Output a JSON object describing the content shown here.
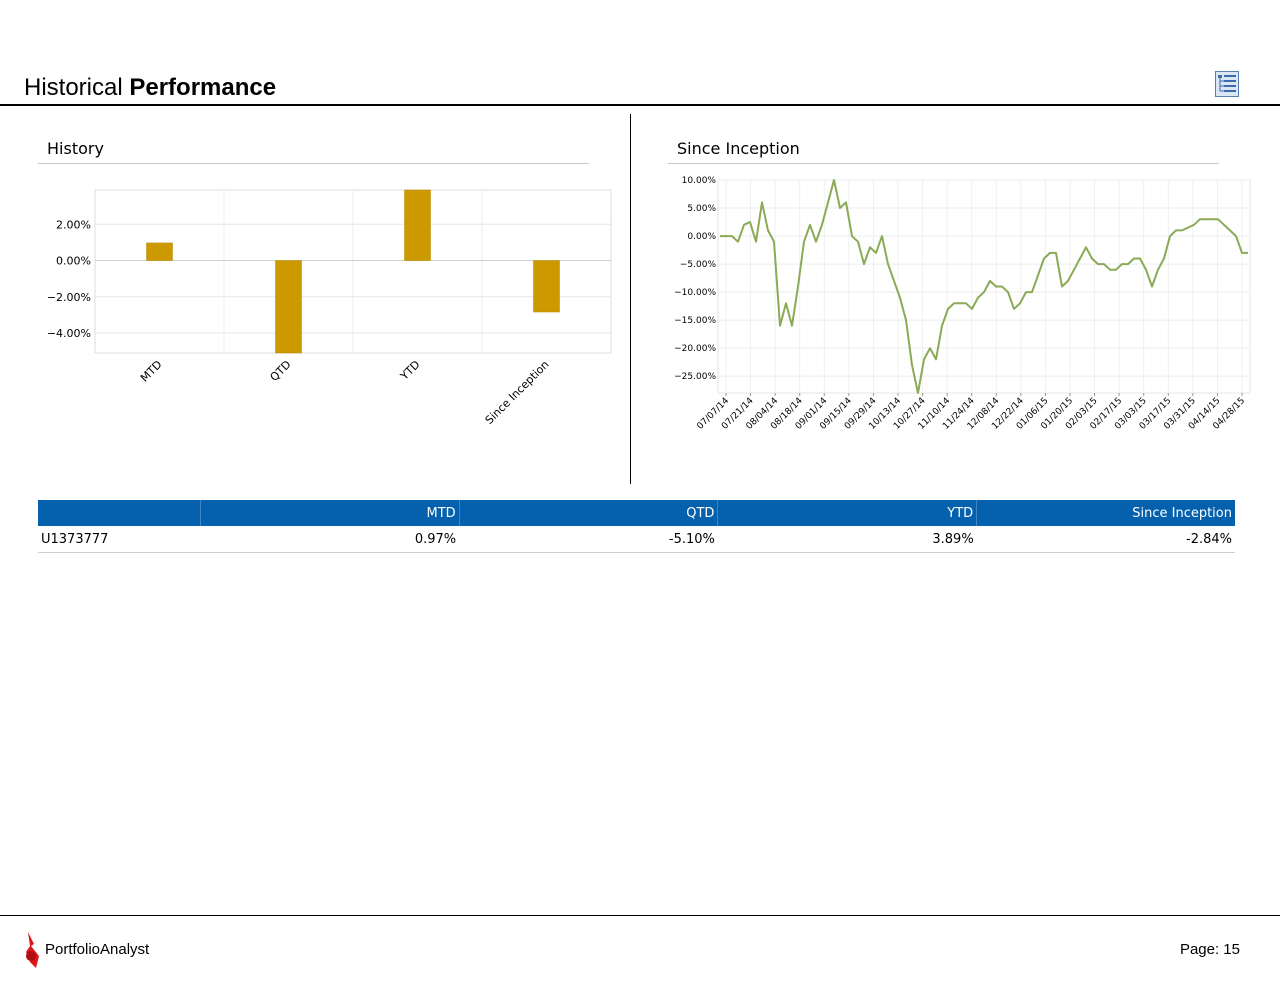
{
  "header": {
    "title_light": "Historical",
    "title_bold": "Performance",
    "report_icon": "report-list-icon"
  },
  "history": {
    "title": "History",
    "chart_data": {
      "type": "bar",
      "categories": [
        "MTD",
        "QTD",
        "YTD",
        "Since Inception"
      ],
      "values": [
        0.97,
        -5.1,
        3.89,
        -2.84
      ],
      "ylim": [
        -5.1,
        3.89
      ],
      "yticks": [
        2,
        0,
        -2,
        -4
      ],
      "ytick_labels": [
        "2.00%",
        "0.00%",
        "−2.00%",
        "−4.00%"
      ],
      "bar_color": "#cc9900",
      "grid": true
    }
  },
  "since_inception": {
    "title": "Since Inception",
    "chart_data": {
      "type": "line",
      "line_color": "#8aaa55",
      "ylim": [
        -28,
        10
      ],
      "yticks": [
        10,
        5,
        0,
        -5,
        -10,
        -15,
        -20,
        -25
      ],
      "ytick_labels": [
        "10.00%",
        "5.00%",
        "0.00%",
        "−5.00%",
        "−10.00%",
        "−15.00%",
        "−20.00%",
        "−25.00%"
      ],
      "xtick_labels": [
        "07/07/14",
        "07/21/14",
        "08/04/14",
        "08/18/14",
        "09/01/14",
        "09/15/14",
        "09/29/14",
        "10/13/14",
        "10/27/14",
        "11/10/14",
        "11/24/14",
        "12/08/14",
        "12/22/14",
        "01/06/15",
        "01/20/15",
        "02/03/15",
        "02/17/15",
        "03/03/15",
        "03/17/15",
        "03/31/15",
        "04/14/15",
        "04/28/15"
      ],
      "series": [
        {
          "values": [
            0,
            0,
            0,
            -1,
            2,
            2.5,
            -1,
            6,
            1,
            -1,
            -16,
            -12,
            -16,
            -9,
            -1,
            2,
            -1,
            2,
            6,
            10,
            5,
            6,
            0,
            -1,
            -5,
            -2,
            -3,
            0,
            -5,
            -8,
            -11,
            -15,
            -23,
            -28,
            -22,
            -20,
            -22,
            -16,
            -13,
            -12,
            -12,
            -12,
            -13,
            -11,
            -10,
            -8,
            -9,
            -9,
            -10,
            -13,
            -12,
            -10,
            -10,
            -7,
            -4,
            -3,
            -3,
            -9,
            -8,
            -6,
            -4,
            -2,
            -4,
            -5,
            -5,
            -6,
            -6,
            -5,
            -5,
            -4,
            -4,
            -6,
            -9,
            -6,
            -4,
            0,
            1,
            1,
            1.5,
            2,
            3,
            3,
            3,
            3,
            2,
            1,
            0,
            -3,
            -3
          ]
        }
      ],
      "grid": true
    }
  },
  "table": {
    "headers": [
      "",
      "MTD",
      "QTD",
      "YTD",
      "Since Inception"
    ],
    "rows": [
      {
        "account": "U1373777",
        "mtd": "0.97%",
        "qtd": "-5.10%",
        "ytd": "3.89%",
        "since": "-2.84%"
      }
    ]
  },
  "footer": {
    "brand": "PortfolioAnalyst",
    "page": "Page: 15",
    "logo": "portfolioanalyst-logo-icon"
  }
}
